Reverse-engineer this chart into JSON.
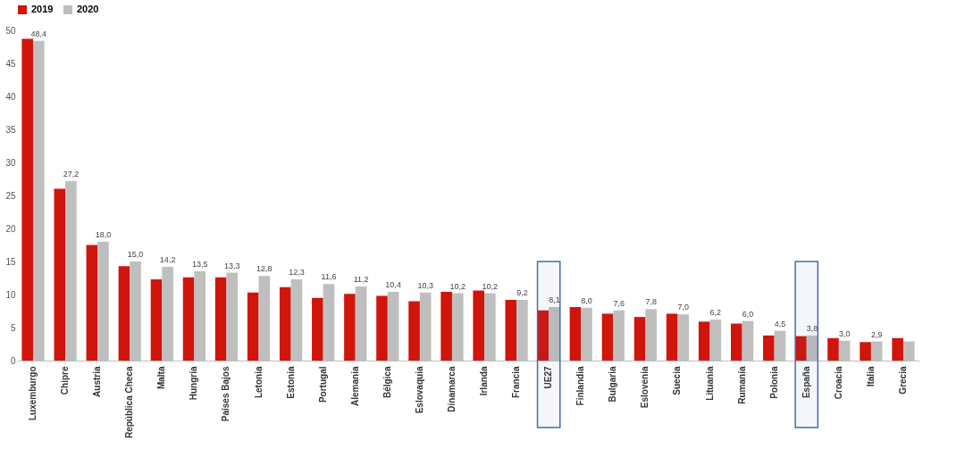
{
  "chart_data": {
    "type": "bar",
    "categories": [
      "Luxemburgo",
      "Chipre",
      "Austria",
      "República Checa",
      "Malta",
      "Hungría",
      "Países Bajos",
      "Letonia",
      "Estonia",
      "Portugal",
      "Alemania",
      "Bélgica",
      "Eslovaquia",
      "Dinamarca",
      "Irlanda",
      "Francia",
      "UE27",
      "Finlandia",
      "Bulgaria",
      "Eslovenia",
      "Suecia",
      "Lituania",
      "Rumanía",
      "Polonia",
      "España",
      "Croacia",
      "Italia",
      "Grecia"
    ],
    "series": [
      {
        "name": "2019",
        "color": "#d0150c",
        "values": [
          48.7,
          26.0,
          17.5,
          14.3,
          12.3,
          12.6,
          12.6,
          10.3,
          11.1,
          9.5,
          10.1,
          9.8,
          9.0,
          10.4,
          10.6,
          9.2,
          7.6,
          8.1,
          7.1,
          6.6,
          7.1,
          5.9,
          5.6,
          3.8,
          3.7,
          3.4,
          2.8,
          3.4
        ]
      },
      {
        "name": "2020",
        "color": "#bfbfbf",
        "values": [
          48.4,
          27.2,
          18.0,
          15.0,
          14.2,
          13.5,
          13.3,
          12.8,
          12.3,
          11.6,
          11.2,
          10.4,
          10.3,
          10.2,
          10.2,
          9.2,
          8.1,
          8.0,
          7.6,
          7.8,
          7.0,
          6.2,
          6.0,
          4.5,
          3.8,
          3.0,
          2.9,
          2.9
        ],
        "value_labels": [
          "48,4",
          "27,2",
          "18,0",
          "15,0",
          "14,2",
          "13,5",
          "13,3",
          "12,8",
          "12,3",
          "11,6",
          "11,2",
          "10,4",
          "10,3",
          "10,2",
          "10,2",
          "9,2",
          "8,1",
          "8,0",
          "7,6",
          "7,8",
          "7,0",
          "6,2",
          "6,0",
          "4,5",
          "3,8",
          "3,0",
          "2,9",
          null
        ]
      }
    ],
    "ylim": [
      0,
      50
    ],
    "yticks": [
      0,
      5,
      10,
      15,
      20,
      25,
      30,
      35,
      40,
      45,
      50
    ],
    "grid": false,
    "legend": "top",
    "bands": [
      {
        "axis": "x",
        "from": "UE27",
        "to": "UE27",
        "color": "#4a6aa8"
      },
      {
        "axis": "x",
        "from": "España",
        "to": "España",
        "color": "#4a6aa8"
      }
    ]
  }
}
